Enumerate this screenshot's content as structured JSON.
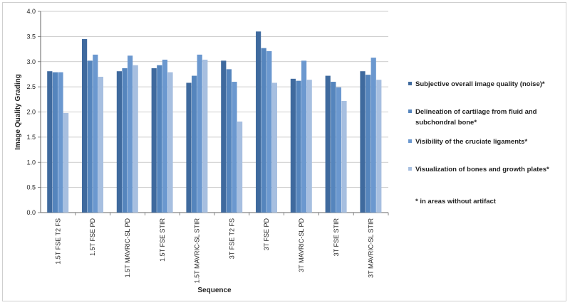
{
  "chart_data": {
    "type": "bar",
    "title": "",
    "xlabel": "Sequence",
    "ylabel": "Image Quality Grading",
    "ylim": [
      0,
      4
    ],
    "yticks": [
      "0.0",
      "0.5",
      "1.0",
      "1.5",
      "2.0",
      "2.5",
      "3.0",
      "3.5",
      "4.0"
    ],
    "grid": true,
    "legend_position": "right",
    "categories": [
      "1.5T FSE T2 FS",
      "1.5T FSE PD",
      "1.5T MAVRIC-SL PD",
      "1.5T FSE STIR",
      "1.5T MAVRIC-SL STIR",
      "3T FSE T2 FS",
      "3T FSE PD",
      "3T MAVRIC-SL PD",
      "3T FSE STIR",
      "3T MAVRIC-SL STIR"
    ],
    "series": [
      {
        "name": "Subjective overall image quality (noise)*",
        "color": "#3f6a9e",
        "values": [
          2.81,
          3.45,
          2.81,
          2.87,
          2.58,
          3.02,
          3.6,
          2.66,
          2.72,
          2.81
        ]
      },
      {
        "name": "Delineation of cartilage from fluid and subchondral bone*",
        "color": "#5585bd",
        "values": [
          2.79,
          3.02,
          2.87,
          2.93,
          2.72,
          2.85,
          3.27,
          2.62,
          2.6,
          2.74
        ]
      },
      {
        "name": "Visibility of the cruciate ligaments*",
        "color": "#6b98cf",
        "values": [
          2.79,
          3.14,
          3.12,
          3.04,
          3.14,
          2.6,
          3.21,
          3.02,
          2.49,
          3.08
        ]
      },
      {
        "name": "Visualization of bones and growth plates*",
        "color": "#a7bfe0",
        "values": [
          1.98,
          2.7,
          2.93,
          2.79,
          3.04,
          1.81,
          2.58,
          2.64,
          2.22,
          2.64
        ]
      }
    ],
    "legend_lines": [
      [
        "Subjective overall image quality (noise)*"
      ],
      [
        "Delineation of cartilage from fluid and",
        "subchondral bone*"
      ],
      [
        "Visibility of the cruciate ligaments*"
      ],
      [
        "Visualization of bones and growth plates*"
      ]
    ],
    "footnote": "* in areas without artifact"
  }
}
